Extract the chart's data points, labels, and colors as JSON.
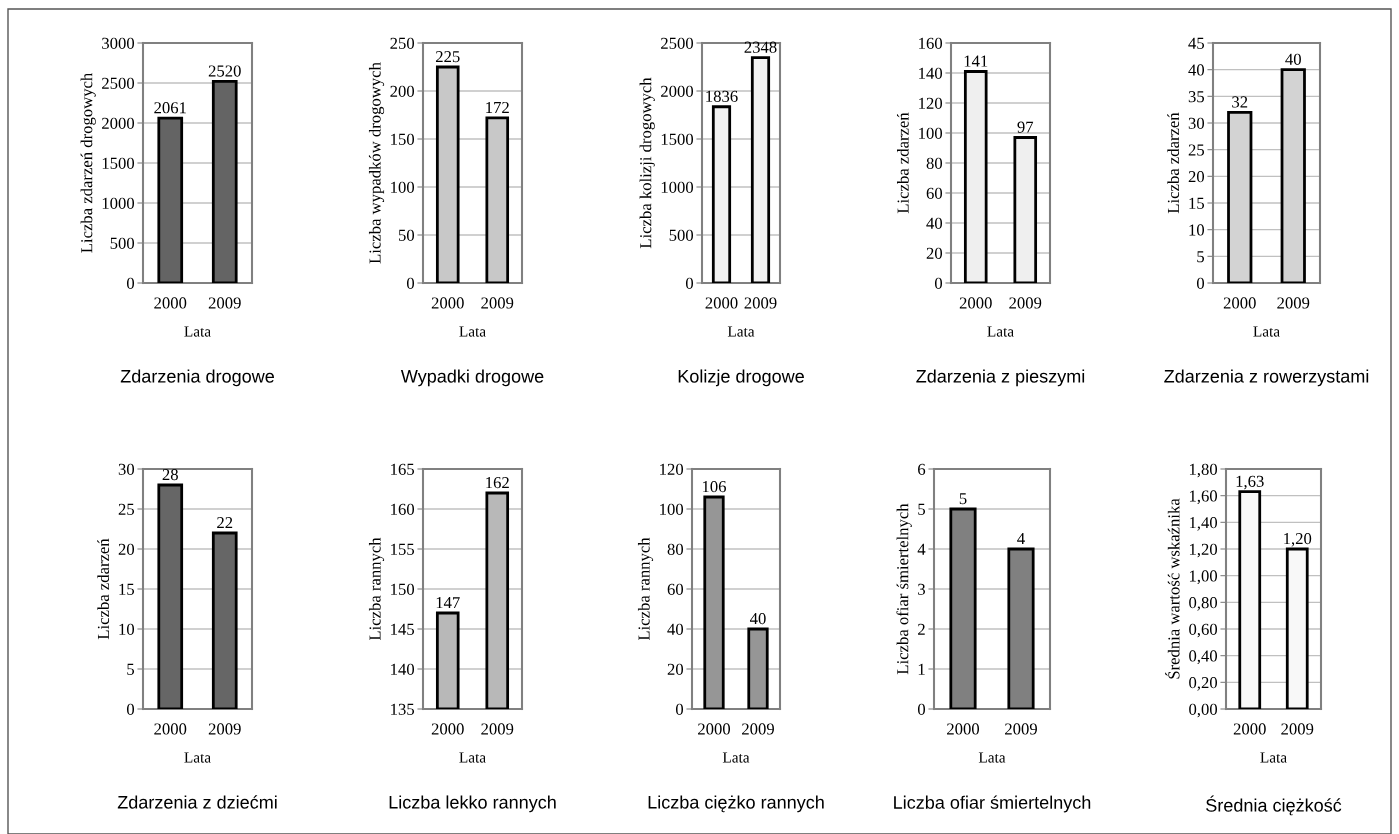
{
  "chart_data": [
    {
      "type": "bar",
      "title": "Zdarzenia drogowe",
      "xlabel": "Lata",
      "ylabel": "Liczba zdarzeń drogowych",
      "categories": [
        "2000",
        "2009"
      ],
      "values": [
        2061,
        2520
      ],
      "color": "#646464",
      "ylim": [
        0,
        3000
      ],
      "yticks": [
        0,
        500,
        1000,
        1500,
        2000,
        2500,
        3000
      ],
      "grid": "y",
      "data_labels": true
    },
    {
      "type": "bar",
      "title": "Wypadki drogowe",
      "xlabel": "Lata",
      "ylabel": "Liczba wypadków drogowych",
      "categories": [
        "2000",
        "2009"
      ],
      "values": [
        225,
        172
      ],
      "color": "#c8c8c8",
      "ylim": [
        0,
        250
      ],
      "yticks": [
        0,
        50,
        100,
        150,
        200,
        250
      ],
      "grid": "y",
      "data_labels": true
    },
    {
      "type": "bar",
      "title": "Kolizje drogowe",
      "xlabel": "Lata",
      "ylabel": "Liczba kolizji drogowych",
      "categories": [
        "2000",
        "2009"
      ],
      "values": [
        1836,
        2348
      ],
      "color": "#f2f2f2",
      "ylim": [
        0,
        2500
      ],
      "yticks": [
        0,
        500,
        1000,
        1500,
        2000,
        2500
      ],
      "grid": "y",
      "data_labels": true
    },
    {
      "type": "bar",
      "title": "Zdarzenia z pieszymi",
      "xlabel": "Lata",
      "ylabel": "Liczba zdarzeń",
      "categories": [
        "2000",
        "2009"
      ],
      "values": [
        141,
        97
      ],
      "color": "#efefef",
      "ylim": [
        0,
        160
      ],
      "yticks": [
        0,
        20,
        40,
        60,
        80,
        100,
        120,
        140,
        160
      ],
      "grid": "y",
      "data_labels": true
    },
    {
      "type": "bar",
      "title": "Zdarzenia z rowerzystami",
      "xlabel": "Lata",
      "ylabel": "Liczba zdarzeń",
      "categories": [
        "2000",
        "2009"
      ],
      "values": [
        32,
        40
      ],
      "color": "#d3d3d3",
      "ylim": [
        0,
        45
      ],
      "yticks": [
        0,
        5,
        10,
        15,
        20,
        25,
        30,
        35,
        40,
        45
      ],
      "grid": "y",
      "data_labels": true
    },
    {
      "type": "bar",
      "title": "Zdarzenia z dziećmi",
      "xlabel": "Lata",
      "ylabel": "Liczba zdarzeń",
      "categories": [
        "2000",
        "2009"
      ],
      "values": [
        28,
        22
      ],
      "color": "#666666",
      "ylim": [
        0,
        30
      ],
      "yticks": [
        0,
        5,
        10,
        15,
        20,
        25,
        30
      ],
      "grid": "y",
      "data_labels": true
    },
    {
      "type": "bar",
      "title": "Liczba lekko rannych",
      "xlabel": "Lata",
      "ylabel": "Liczba rannych",
      "categories": [
        "2000",
        "2009"
      ],
      "values": [
        147,
        162
      ],
      "color": "#b8b8b8",
      "ylim": [
        135,
        165
      ],
      "yticks": [
        135,
        140,
        145,
        150,
        155,
        160,
        165
      ],
      "grid": "y",
      "data_labels": true
    },
    {
      "type": "bar",
      "title": "Liczba ciężko rannych",
      "xlabel": "Lata",
      "ylabel": "Liczba rannych",
      "categories": [
        "2000",
        "2009"
      ],
      "values": [
        106,
        40
      ],
      "color": "#969696",
      "ylim": [
        0,
        120
      ],
      "yticks": [
        0,
        20,
        40,
        60,
        80,
        100,
        120
      ],
      "grid": "y",
      "data_labels": true
    },
    {
      "type": "bar",
      "title": "Liczba ofiar śmiertelnych",
      "xlabel": "Lata",
      "ylabel": "Liczba ofiar śmiertelnych",
      "categories": [
        "2000",
        "2009"
      ],
      "values": [
        5,
        4
      ],
      "color": "#808080",
      "ylim": [
        0,
        6
      ],
      "yticks": [
        0,
        1,
        2,
        3,
        4,
        5,
        6
      ],
      "grid": "y",
      "data_labels": true
    },
    {
      "type": "bar",
      "title": "Średnia ciężkość",
      "xlabel": "Lata",
      "ylabel": "Średnia wartość wskaźnika",
      "categories": [
        "2000",
        "2009"
      ],
      "values": [
        1.63,
        1.2
      ],
      "value_labels": [
        "1,63",
        "1,20"
      ],
      "color": "#f8f8f8",
      "ylim": [
        0,
        1.8
      ],
      "yticks": [
        {
          "value": 0,
          "label": "0,00"
        },
        {
          "value": 0.2,
          "label": "0,20"
        },
        {
          "value": 0.4,
          "label": "0,40"
        },
        {
          "value": 0.6,
          "label": "0,60"
        },
        {
          "value": 0.8,
          "label": "0,80"
        },
        {
          "value": 1.0,
          "label": "1,00"
        },
        {
          "value": 1.2,
          "label": "1,20"
        },
        {
          "value": 1.4,
          "label": "1,40"
        },
        {
          "value": 1.6,
          "label": "1,60"
        },
        {
          "value": 1.8,
          "label": "1,80"
        }
      ],
      "grid": "y"
    }
  ]
}
